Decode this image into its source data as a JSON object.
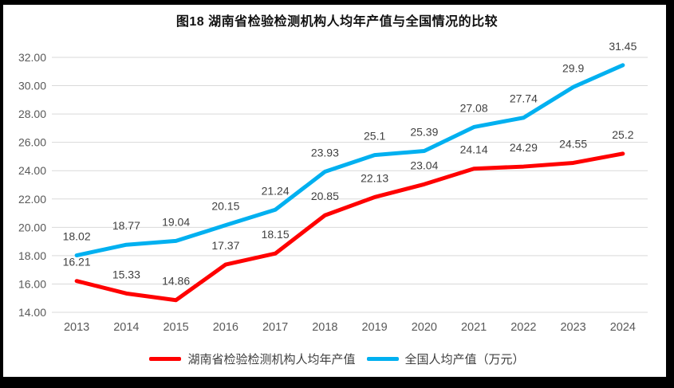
{
  "chart_data": {
    "type": "line",
    "title": "图18 湖南省检验检测机构人均年产值与全国情况的比较",
    "categories": [
      "2013",
      "2014",
      "2015",
      "2016",
      "2017",
      "2018",
      "2019",
      "2020",
      "2021",
      "2022",
      "2023",
      "2024"
    ],
    "series": [
      {
        "name": "湖南省检验检测机构人均年产值",
        "color": "#FF0000",
        "values": [
          16.21,
          15.33,
          14.86,
          17.37,
          18.15,
          20.85,
          22.13,
          23.04,
          24.14,
          24.29,
          24.55,
          25.2
        ]
      },
      {
        "name": "全国人均产值（万元）",
        "color": "#00B0F0",
        "values": [
          18.02,
          18.77,
          19.04,
          20.15,
          21.24,
          23.93,
          25.1,
          25.39,
          27.08,
          27.74,
          29.9,
          31.45
        ]
      }
    ],
    "ylim": [
      14,
      32
    ],
    "y_step": 2,
    "y_ticks": [
      "14.00",
      "16.00",
      "18.00",
      "20.00",
      "22.00",
      "24.00",
      "26.00",
      "28.00",
      "30.00",
      "32.00"
    ],
    "xlabel": "",
    "ylabel": "",
    "grid": true,
    "legend_position": "bottom",
    "colors": {
      "gridline": "#D9D9D9",
      "axis_text": "#595959",
      "data_label": "#404040",
      "frame": "#000000",
      "background": "#FFFFFF"
    }
  }
}
